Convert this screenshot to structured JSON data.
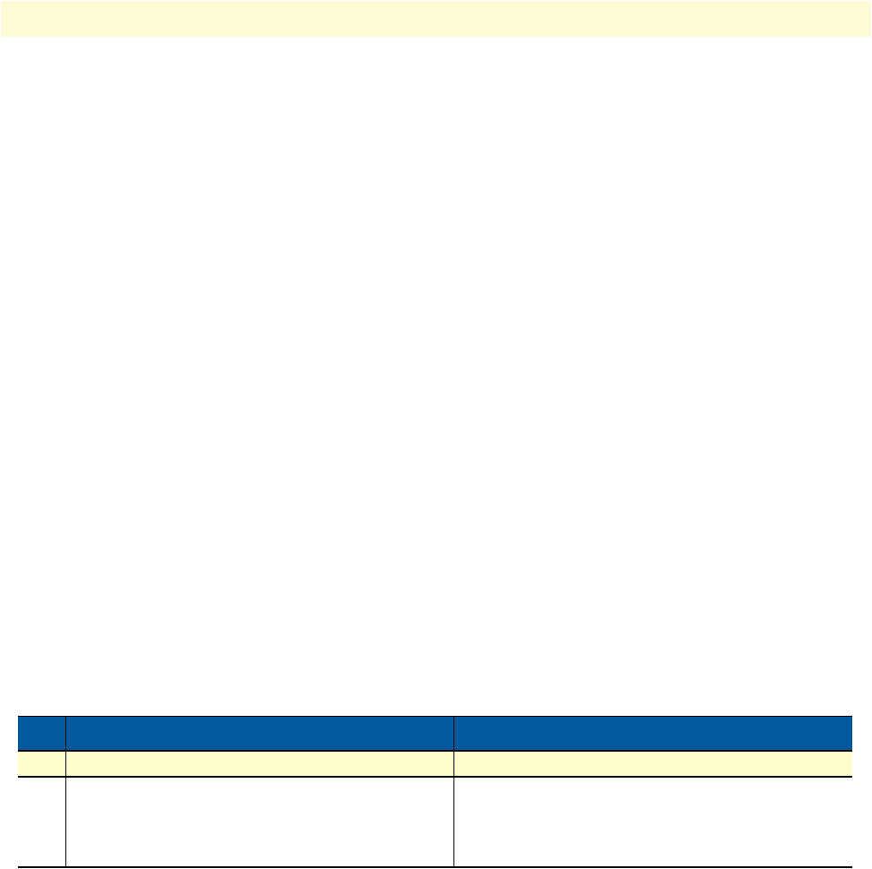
{
  "colors": {
    "header_band": "#fefad6",
    "table_header": "#035a9c",
    "highlight_row": "#fefecc"
  },
  "table": {
    "headers": [
      "",
      "",
      ""
    ],
    "rows": [
      [
        "",
        "",
        ""
      ],
      [
        "",
        "",
        ""
      ]
    ]
  }
}
